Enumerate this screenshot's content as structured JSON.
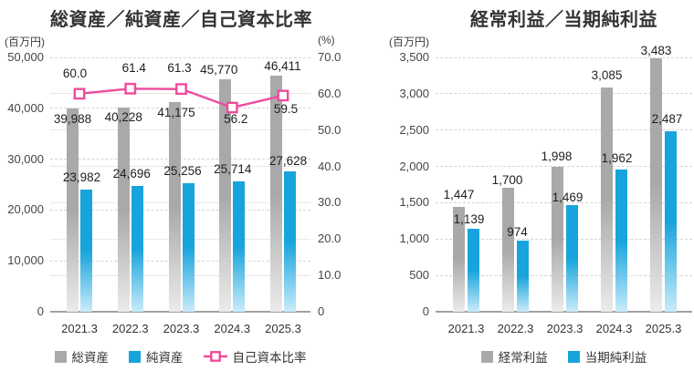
{
  "chart_data": [
    {
      "type": "bar",
      "title": "総資産／純資産／自己資本比率",
      "categories": [
        "2021.3",
        "2022.3",
        "2023.3",
        "2024.3",
        "2025.3"
      ],
      "y_left": {
        "label": "(百万円)",
        "max": 50000,
        "tick_values": [
          50000,
          40000,
          30000,
          20000,
          10000,
          0
        ],
        "tick_labels": [
          "50,000",
          "40,000",
          "30,000",
          "20,000",
          "10,000",
          "0"
        ]
      },
      "y_right": {
        "label": "(%)",
        "max": 70,
        "tick_values": [
          70,
          60,
          50,
          40,
          30,
          20,
          10,
          0
        ],
        "tick_labels": [
          "70.0",
          "60.0",
          "50.0",
          "40.0",
          "30.0",
          "20.0",
          "10.0",
          "0"
        ]
      },
      "grid": "dashed-primary-solid-secondary",
      "legend_position": "bottom",
      "series": [
        {
          "id": "total-assets",
          "name": "総資産",
          "type": "bar",
          "axis": "left",
          "color": "#a9a9a9",
          "color_fade": "#ebebeb",
          "values": [
            39988,
            40228,
            41175,
            45770,
            46411
          ],
          "value_labels": [
            "39,988",
            "40,228",
            "41,175",
            "45,770",
            "46,411"
          ],
          "label_offsets": [
            [
              0,
              12
            ],
            [
              0,
              11
            ],
            [
              2,
              12
            ],
            [
              -7,
              -10
            ],
            [
              7,
              -10
            ]
          ]
        },
        {
          "id": "net-assets",
          "name": "純資産",
          "type": "bar",
          "axis": "left",
          "color": "#17a4dc",
          "color_fade": "#c9ebf9",
          "values": [
            23982,
            24696,
            25256,
            25714,
            27628
          ],
          "value_labels": [
            "23,982",
            "24,696",
            "25,256",
            "25,714",
            "27,628"
          ],
          "label_offsets": [
            [
              -5,
              -13
            ],
            [
              -6,
              -13
            ],
            [
              -6,
              -13
            ],
            [
              -7,
              -13
            ],
            [
              -2,
              -11
            ]
          ]
        },
        {
          "id": "equity-ratio",
          "name": "自己資本比率",
          "type": "line",
          "axis": "right",
          "color": "#ee4c9b",
          "values": [
            60.0,
            61.4,
            61.3,
            56.2,
            59.5
          ],
          "value_labels": [
            "60.0",
            "61.4",
            "61.3",
            "56.2",
            "59.5"
          ],
          "label_offsets": [
            [
              -5,
              -22
            ],
            [
              4,
              -22
            ],
            [
              -2,
              -23
            ],
            [
              4,
              13
            ],
            [
              3,
              15
            ]
          ]
        }
      ]
    },
    {
      "type": "bar",
      "title": "経常利益／当期純利益",
      "categories": [
        "2021.3",
        "2022.3",
        "2023.3",
        "2024.3",
        "2025.3"
      ],
      "y_left": {
        "label": "(百万円)",
        "max": 3500,
        "tick_values": [
          3500,
          3000,
          2500,
          2000,
          1500,
          1000,
          500,
          0
        ],
        "tick_labels": [
          "3,500",
          "3,000",
          "2,500",
          "2,000",
          "1,500",
          "1,000",
          "500",
          "0"
        ]
      },
      "grid": "dashed-primary",
      "legend_position": "bottom",
      "series": [
        {
          "id": "ordinary-income",
          "name": "経常利益",
          "type": "bar",
          "axis": "left",
          "color": "#a9a9a9",
          "color_fade": "#ebebeb",
          "values": [
            1447,
            1700,
            1998,
            3085,
            3483
          ],
          "value_labels": [
            "1,447",
            "1,700",
            "1,998",
            "3,085",
            "3,483"
          ],
          "label_offsets": [
            [
              0,
              -13
            ],
            [
              -1,
              -8
            ],
            [
              -1,
              -11
            ],
            [
              0,
              -13
            ],
            [
              0,
              -8
            ]
          ]
        },
        {
          "id": "net-income",
          "name": "当期純利益",
          "type": "bar",
          "axis": "left",
          "color": "#17a4dc",
          "color_fade": "#c9ebf9",
          "values": [
            1139,
            974,
            1469,
            1962,
            2487
          ],
          "value_labels": [
            "1,139",
            "974",
            "1,469",
            "1,962",
            "2,487"
          ],
          "label_offsets": [
            [
              -5,
              -10
            ],
            [
              -6,
              -9
            ],
            [
              -5,
              -8
            ],
            [
              -5,
              -12
            ],
            [
              -4,
              -13
            ]
          ]
        }
      ]
    }
  ]
}
